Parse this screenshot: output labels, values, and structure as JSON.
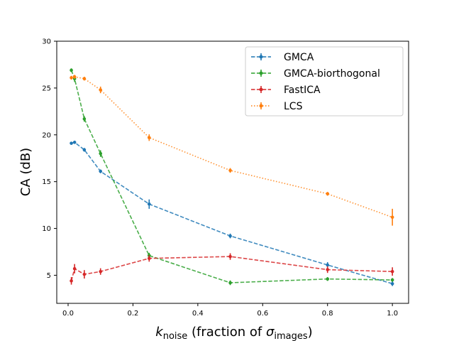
{
  "chart_data": {
    "type": "line",
    "title": "",
    "xlabel": {
      "main": "k",
      "sub": "noise",
      "rest": " (fraction of ",
      "sigma": "σ",
      "sigma_sub": "images",
      "close": ")"
    },
    "ylabel": "CA (dB)",
    "xlim": [
      -0.035,
      1.05
    ],
    "ylim": [
      2.0,
      30.0
    ],
    "xticks": [
      0.0,
      0.2,
      0.4,
      0.6,
      0.8,
      1.0
    ],
    "xtick_labels": [
      "0.0",
      "0.2",
      "0.4",
      "0.6",
      "0.8",
      "1.0"
    ],
    "yticks": [
      5,
      10,
      15,
      20,
      25,
      30
    ],
    "ytick_labels": [
      "5",
      "10",
      "15",
      "20",
      "25",
      "30"
    ],
    "legend_position": "top-right",
    "grid": false,
    "series": [
      {
        "name": "GMCA",
        "color": "#1f77b4",
        "dash": "dashed",
        "points": [
          {
            "x": 0.01,
            "y": 19.1,
            "err": 0.15
          },
          {
            "x": 0.02,
            "y": 19.2,
            "err": 0.12
          },
          {
            "x": 0.05,
            "y": 18.4,
            "err": 0.2
          },
          {
            "x": 0.1,
            "y": 16.1,
            "err": 0.2
          },
          {
            "x": 0.25,
            "y": 12.6,
            "err": 0.5
          },
          {
            "x": 0.5,
            "y": 9.2,
            "err": 0.25
          },
          {
            "x": 0.8,
            "y": 6.1,
            "err": 0.3
          },
          {
            "x": 1.0,
            "y": 4.1,
            "err": 0.25
          }
        ]
      },
      {
        "name": "GMCA-biorthogonal",
        "color": "#2ca02c",
        "dash": "dashed",
        "points": [
          {
            "x": 0.01,
            "y": 26.9,
            "err": 0.2
          },
          {
            "x": 0.02,
            "y": 26.0,
            "err": 0.35
          },
          {
            "x": 0.05,
            "y": 21.7,
            "err": 0.3
          },
          {
            "x": 0.1,
            "y": 18.0,
            "err": 0.35
          },
          {
            "x": 0.25,
            "y": 7.1,
            "err": 0.3
          },
          {
            "x": 0.5,
            "y": 4.2,
            "err": 0.25
          },
          {
            "x": 0.8,
            "y": 4.6,
            "err": 0.2
          },
          {
            "x": 1.0,
            "y": 4.5,
            "err": 0.2
          }
        ]
      },
      {
        "name": "FastICA",
        "color": "#d62728",
        "dash": "dashed",
        "points": [
          {
            "x": 0.01,
            "y": 4.4,
            "err": 0.4
          },
          {
            "x": 0.02,
            "y": 5.7,
            "err": 0.5
          },
          {
            "x": 0.05,
            "y": 5.1,
            "err": 0.45
          },
          {
            "x": 0.1,
            "y": 5.4,
            "err": 0.35
          },
          {
            "x": 0.25,
            "y": 6.8,
            "err": 0.35
          },
          {
            "x": 0.5,
            "y": 7.0,
            "err": 0.35
          },
          {
            "x": 0.8,
            "y": 5.6,
            "err": 0.35
          },
          {
            "x": 1.0,
            "y": 5.4,
            "err": 0.45
          }
        ]
      },
      {
        "name": "LCS",
        "color": "#ff7f0e",
        "dash": "dotted",
        "points": [
          {
            "x": 0.01,
            "y": 26.1,
            "err": 0.2
          },
          {
            "x": 0.02,
            "y": 26.2,
            "err": 0.2
          },
          {
            "x": 0.05,
            "y": 26.0,
            "err": 0.2
          },
          {
            "x": 0.1,
            "y": 24.8,
            "err": 0.35
          },
          {
            "x": 0.25,
            "y": 19.7,
            "err": 0.35
          },
          {
            "x": 0.5,
            "y": 16.2,
            "err": 0.25
          },
          {
            "x": 0.8,
            "y": 13.7,
            "err": 0.2
          },
          {
            "x": 1.0,
            "y": 11.2,
            "err": 0.9
          }
        ]
      }
    ]
  }
}
